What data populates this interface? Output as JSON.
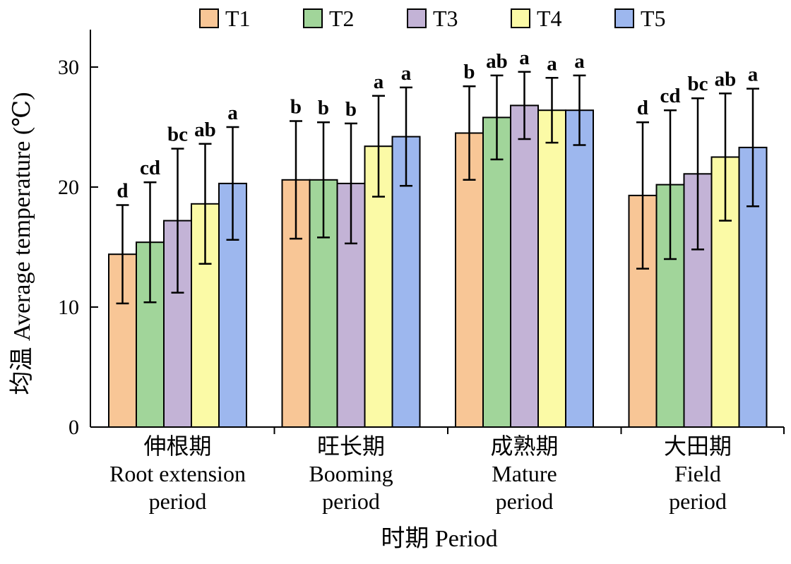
{
  "chart_data": {
    "type": "bar",
    "ylabel": "均温 Average temperature (℃)",
    "xlabel": "时期 Period",
    "ylim": [
      0,
      33
    ],
    "yticks": [
      0,
      10,
      20,
      30
    ],
    "grid": false,
    "legend_position": "top",
    "categories": [
      [
        "伸根期",
        "Root extension",
        "period"
      ],
      [
        "旺长期",
        "Booming",
        "period"
      ],
      [
        "成熟期",
        "Mature",
        "period"
      ],
      [
        "大田期",
        "Field",
        "period"
      ]
    ],
    "series": [
      {
        "name": "T1",
        "color": "#F8C696",
        "values": [
          14.4,
          20.6,
          24.5,
          19.3
        ],
        "errors": [
          4.1,
          4.9,
          3.9,
          6.1
        ],
        "labels": [
          "d",
          "b",
          "b",
          "d"
        ]
      },
      {
        "name": "T2",
        "color": "#A1D59A",
        "values": [
          15.4,
          20.6,
          25.8,
          20.2
        ],
        "errors": [
          5.0,
          4.8,
          3.5,
          6.2
        ],
        "labels": [
          "cd",
          "b",
          "ab",
          "cd"
        ]
      },
      {
        "name": "T3",
        "color": "#C3B3D6",
        "values": [
          17.2,
          20.3,
          26.8,
          21.1
        ],
        "errors": [
          6.0,
          5.0,
          2.8,
          6.3
        ],
        "labels": [
          "bc",
          "b",
          "a",
          "bc"
        ]
      },
      {
        "name": "T4",
        "color": "#FBFAA6",
        "values": [
          18.6,
          23.4,
          26.4,
          22.5
        ],
        "errors": [
          5.0,
          4.2,
          2.7,
          5.3
        ],
        "labels": [
          "ab",
          "a",
          "a",
          "ab"
        ]
      },
      {
        "name": "T5",
        "color": "#9DB7EE",
        "values": [
          20.3,
          24.2,
          26.4,
          23.3
        ],
        "errors": [
          4.7,
          4.1,
          2.9,
          4.9
        ],
        "labels": [
          "a",
          "a",
          "a",
          "a"
        ]
      }
    ]
  }
}
